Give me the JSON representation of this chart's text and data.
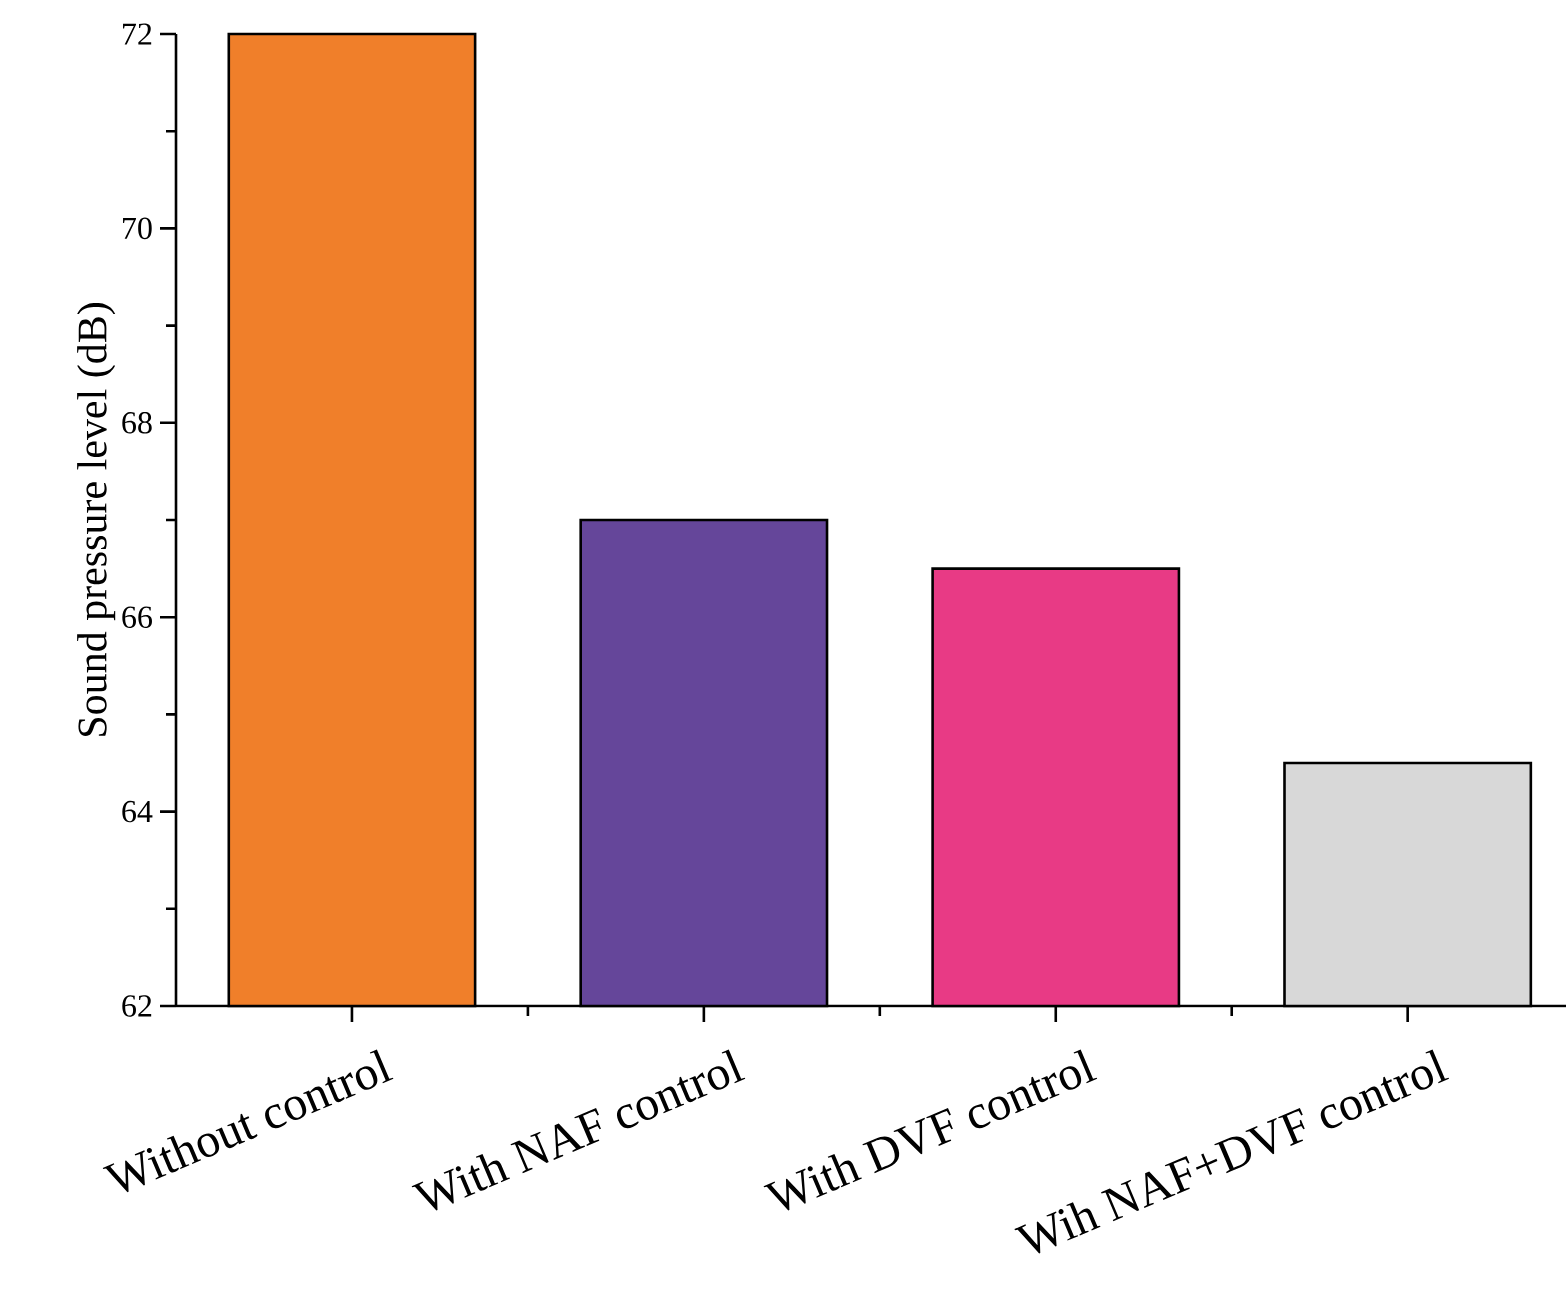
{
  "chart_data": {
    "type": "bar",
    "ylabel": "Sound pressure level (dB)",
    "categories": [
      "Without control",
      "With NAF control",
      "With DVF control",
      "Wih NAF+DVF control"
    ],
    "values": [
      72,
      67,
      66.5,
      64.5
    ],
    "colors": [
      "#f07f2a",
      "#65469a",
      "#e83a85",
      "#d8d8d8"
    ],
    "ylim": [
      62,
      72
    ],
    "yticks": [
      62,
      {
        "value": 63,
        "label": null
      },
      64,
      {
        "value": 65,
        "label": null
      },
      66,
      {
        "value": 67,
        "label": null
      },
      68,
      {
        "value": 69,
        "label": null
      },
      70,
      {
        "value": 71,
        "label": null
      },
      72
    ]
  }
}
